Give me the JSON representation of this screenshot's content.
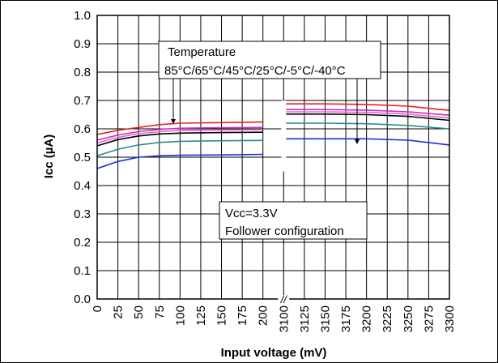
{
  "chart_data": {
    "type": "line",
    "xlabel": "Input voltage (mV)",
    "ylabel": "Icc (µA)",
    "ylim": [
      0.0,
      1.0
    ],
    "y_ticks": [
      "0.0",
      "0.1",
      "0.2",
      "0.3",
      "0.4",
      "0.5",
      "0.6",
      "0.7",
      "0.8",
      "0.9",
      "1.0"
    ],
    "x_ticks": [
      "0",
      "25",
      "50",
      "75",
      "100",
      "125",
      "150",
      "175",
      "200",
      "3100",
      "3125",
      "3150",
      "3175",
      "3200",
      "3225",
      "3250",
      "3275",
      "3300"
    ],
    "axis_break": "//",
    "grid": true,
    "annotations": {
      "temperature_title": "Temperature",
      "temperature_values": "85°C/65°C/45°C/25°C/-5°C/-40°C",
      "conditions_line1": "Vcc=3.3V",
      "conditions_line2": "Follower configuration"
    },
    "series": [
      {
        "color": "#e8231a",
        "segment1": {
          "x": [
            0,
            25,
            50,
            75,
            100,
            150,
            200
          ],
          "y": [
            0.58,
            0.595,
            0.605,
            0.615,
            0.62,
            0.622,
            0.624
          ]
        },
        "segment2": {
          "x": [
            3100,
            3150,
            3200,
            3250,
            3300
          ],
          "y": [
            0.688,
            0.688,
            0.686,
            0.68,
            0.665
          ]
        }
      },
      {
        "color": "#c231c4",
        "segment1": {
          "x": [
            0,
            25,
            50,
            75,
            100,
            150,
            200
          ],
          "y": [
            0.56,
            0.578,
            0.59,
            0.598,
            0.602,
            0.604,
            0.605
          ]
        },
        "segment2": {
          "x": [
            3100,
            3150,
            3200,
            3250,
            3300
          ],
          "y": [
            0.668,
            0.668,
            0.666,
            0.66,
            0.648
          ]
        }
      },
      {
        "color": "#e866c8",
        "segment1": {
          "x": [
            0,
            25,
            50,
            75,
            100,
            150,
            200
          ],
          "y": [
            0.55,
            0.57,
            0.583,
            0.59,
            0.594,
            0.596,
            0.597
          ]
        },
        "segment2": {
          "x": [
            3100,
            3150,
            3200,
            3250,
            3300
          ],
          "y": [
            0.66,
            0.66,
            0.658,
            0.652,
            0.638
          ]
        }
      },
      {
        "color": "#000000",
        "segment1": {
          "x": [
            0,
            25,
            50,
            75,
            100,
            150,
            200
          ],
          "y": [
            0.54,
            0.562,
            0.575,
            0.582,
            0.585,
            0.587,
            0.588
          ]
        },
        "segment2": {
          "x": [
            3100,
            3150,
            3200,
            3250,
            3300
          ],
          "y": [
            0.652,
            0.652,
            0.65,
            0.644,
            0.63
          ]
        }
      },
      {
        "color": "#2a8c8c",
        "segment1": {
          "x": [
            0,
            25,
            50,
            75,
            100,
            150,
            200
          ],
          "y": [
            0.505,
            0.528,
            0.543,
            0.552,
            0.556,
            0.558,
            0.559
          ]
        },
        "segment2": {
          "x": [
            3100,
            3150,
            3200,
            3250,
            3300
          ],
          "y": [
            0.62,
            0.62,
            0.618,
            0.612,
            0.6
          ]
        }
      },
      {
        "color": "#1f2fd6",
        "segment1": {
          "x": [
            0,
            25,
            50,
            75,
            100,
            150,
            200
          ],
          "y": [
            0.46,
            0.485,
            0.5,
            0.505,
            0.507,
            0.508,
            0.51
          ]
        },
        "segment2": {
          "x": [
            3100,
            3150,
            3200,
            3250,
            3300
          ],
          "y": [
            0.565,
            0.565,
            0.565,
            0.56,
            0.543
          ]
        }
      }
    ]
  }
}
